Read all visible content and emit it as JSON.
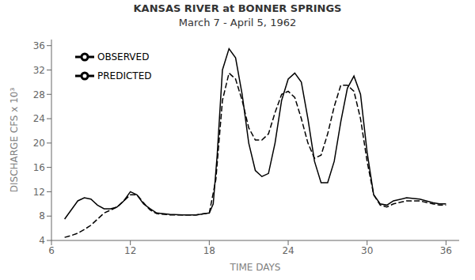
{
  "chart_data": {
    "type": "line",
    "title": "KANSAS RIVER at BONNER SPRINGS",
    "subtitle": "March 7 - April 5, 1962",
    "x_label": "TIME DAYS",
    "y_label": "DISCHARGE CFS x 10³",
    "xlim": [
      6,
      37
    ],
    "ylim": [
      4,
      37
    ],
    "xticks": [
      6,
      12,
      18,
      24,
      30,
      36
    ],
    "yticks": [
      4,
      8,
      12,
      16,
      20,
      24,
      28,
      32,
      36
    ],
    "grid": false,
    "legend": "upper left",
    "series": [
      {
        "name": "OBSERVED",
        "color": "#000000",
        "line_style": "solid",
        "x": [
          7.0,
          7.5,
          8.0,
          8.5,
          9.0,
          9.5,
          10.0,
          10.5,
          11.0,
          11.5,
          12.0,
          12.5,
          13.0,
          13.5,
          14.0,
          15.0,
          16.0,
          17.0,
          18.0,
          18.3,
          18.6,
          19.0,
          19.5,
          20.0,
          20.5,
          21.0,
          21.5,
          22.0,
          22.5,
          23.0,
          23.5,
          24.0,
          24.5,
          25.0,
          25.5,
          26.0,
          26.5,
          27.0,
          27.5,
          28.0,
          28.5,
          29.0,
          29.5,
          30.0,
          30.5,
          31.0,
          31.5,
          32.0,
          33.0,
          34.0,
          35.0,
          35.5,
          36.0
        ],
        "values": [
          7.5,
          9.0,
          10.5,
          11.0,
          10.8,
          9.8,
          9.2,
          9.2,
          9.5,
          10.5,
          12.0,
          11.5,
          10.0,
          9.2,
          8.5,
          8.3,
          8.2,
          8.2,
          8.5,
          10.0,
          18.0,
          32.0,
          35.5,
          34.0,
          28.0,
          20.0,
          15.5,
          14.5,
          15.0,
          20.0,
          27.0,
          30.5,
          31.5,
          30.0,
          24.0,
          17.0,
          13.5,
          13.5,
          17.0,
          23.5,
          29.0,
          31.0,
          28.0,
          18.5,
          11.5,
          10.0,
          9.8,
          10.5,
          11.0,
          10.8,
          10.2,
          10.0,
          10.0
        ]
      },
      {
        "name": "PREDICTED",
        "color": "#000000",
        "line_style": "dashed",
        "x": [
          7.0,
          7.5,
          8.0,
          8.5,
          9.0,
          9.5,
          10.0,
          10.5,
          11.0,
          11.5,
          12.0,
          12.5,
          13.0,
          13.5,
          14.0,
          15.0,
          16.0,
          17.0,
          18.0,
          18.5,
          19.0,
          19.5,
          20.0,
          20.5,
          21.0,
          21.5,
          22.0,
          22.5,
          23.0,
          23.5,
          24.0,
          24.5,
          25.0,
          25.5,
          26.0,
          26.5,
          27.0,
          27.5,
          28.0,
          28.5,
          29.0,
          29.5,
          30.0,
          30.5,
          31.0,
          31.5,
          32.0,
          33.0,
          34.0,
          35.0,
          35.5,
          36.0
        ],
        "values": [
          4.5,
          4.8,
          5.2,
          5.8,
          6.5,
          7.5,
          8.5,
          9.0,
          9.5,
          10.5,
          11.5,
          11.5,
          10.2,
          9.0,
          8.4,
          8.2,
          8.2,
          8.2,
          8.5,
          14.0,
          27.0,
          31.5,
          30.5,
          27.0,
          22.5,
          20.5,
          20.5,
          21.5,
          25.0,
          28.0,
          28.5,
          27.5,
          24.0,
          20.0,
          17.5,
          18.0,
          21.5,
          26.0,
          29.5,
          29.5,
          28.5,
          24.0,
          17.0,
          11.5,
          9.8,
          9.5,
          10.0,
          10.5,
          10.5,
          10.0,
          9.8,
          9.8
        ]
      }
    ]
  }
}
